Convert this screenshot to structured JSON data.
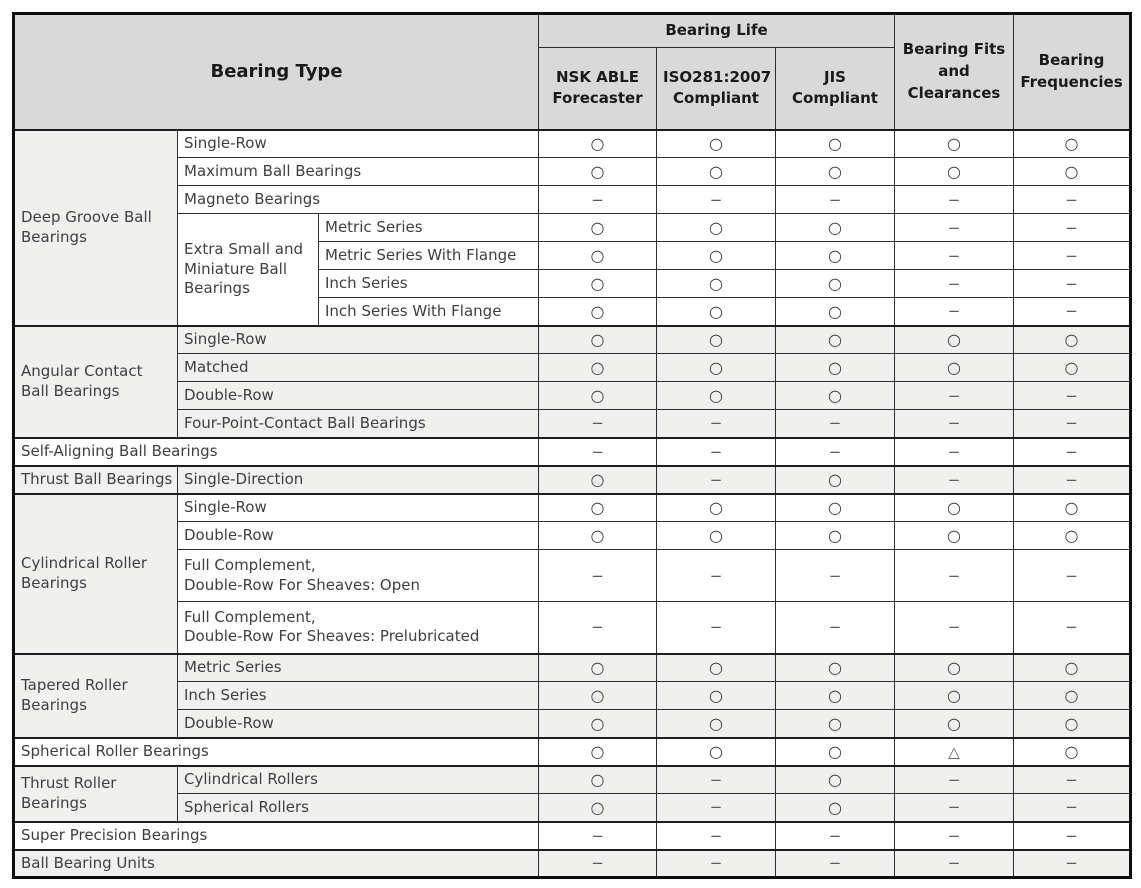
{
  "table": {
    "header": {
      "bearing_type": "Bearing Type",
      "bearing_life": "Bearing Life",
      "sub_columns": [
        "NSK ABLE\nForecaster",
        "ISO281:2007\nCompliant",
        "JIS\nCompliant"
      ],
      "fits": "Bearing Fits\nand\nClearances",
      "frequencies": "Bearing\nFrequencies"
    },
    "symbols": {
      "circle": "○",
      "dash": "−",
      "triangle": "△"
    },
    "rows": [
      {
        "shade": false,
        "cells": [
          {
            "text": "Deep Groove Ball Bearings",
            "rowspan": 7,
            "group": true
          },
          {
            "text": "Single-Row",
            "colspan": 2
          }
        ],
        "values": [
          "circle",
          "circle",
          "circle",
          "circle",
          "circle"
        ]
      },
      {
        "shade": false,
        "cells": [
          {
            "text": "Maximum Ball Bearings",
            "colspan": 2
          }
        ],
        "values": [
          "circle",
          "circle",
          "circle",
          "circle",
          "circle"
        ]
      },
      {
        "shade": false,
        "cells": [
          {
            "text": "Magneto Bearings",
            "colspan": 2
          }
        ],
        "values": [
          "dash",
          "dash",
          "dash",
          "dash",
          "dash"
        ]
      },
      {
        "shade": false,
        "cells": [
          {
            "text": "Extra Small and Miniature Ball Bearings",
            "rowspan": 4
          },
          {
            "text": "Metric Series"
          }
        ],
        "values": [
          "circle",
          "circle",
          "circle",
          "dash",
          "dash"
        ]
      },
      {
        "shade": false,
        "cells": [
          {
            "text": "Metric Series With Flange"
          }
        ],
        "values": [
          "circle",
          "circle",
          "circle",
          "dash",
          "dash"
        ]
      },
      {
        "shade": false,
        "cells": [
          {
            "text": "Inch Series"
          }
        ],
        "values": [
          "circle",
          "circle",
          "circle",
          "dash",
          "dash"
        ]
      },
      {
        "shade": false,
        "cells": [
          {
            "text": "Inch Series With Flange"
          }
        ],
        "values": [
          "circle",
          "circle",
          "circle",
          "dash",
          "dash"
        ]
      },
      {
        "shade": true,
        "cells": [
          {
            "text": "Angular Contact Ball Bearings",
            "rowspan": 4,
            "group": true
          },
          {
            "text": "Single-Row",
            "colspan": 2
          }
        ],
        "values": [
          "circle",
          "circle",
          "circle",
          "circle",
          "circle"
        ]
      },
      {
        "shade": true,
        "cells": [
          {
            "text": "Matched",
            "colspan": 2
          }
        ],
        "values": [
          "circle",
          "circle",
          "circle",
          "circle",
          "circle"
        ]
      },
      {
        "shade": true,
        "cells": [
          {
            "text": "Double-Row",
            "colspan": 2
          }
        ],
        "values": [
          "circle",
          "circle",
          "circle",
          "dash",
          "dash"
        ]
      },
      {
        "shade": true,
        "cells": [
          {
            "text": "Four-Point-Contact Ball Bearings",
            "colspan": 2
          }
        ],
        "values": [
          "dash",
          "dash",
          "dash",
          "dash",
          "dash"
        ]
      },
      {
        "shade": false,
        "cells": [
          {
            "text": "Self-Aligning Ball Bearings",
            "colspan": 3
          }
        ],
        "values": [
          "dash",
          "dash",
          "dash",
          "dash",
          "dash"
        ]
      },
      {
        "shade": true,
        "cells": [
          {
            "text": "Thrust Ball Bearings",
            "group": true
          },
          {
            "text": "Single-Direction",
            "colspan": 2
          }
        ],
        "values": [
          "circle",
          "dash",
          "circle",
          "dash",
          "dash"
        ]
      },
      {
        "shade": false,
        "cells": [
          {
            "text": "Cylindrical Roller Bearings",
            "rowspan": 4,
            "group": true
          },
          {
            "text": "Single-Row",
            "colspan": 2
          }
        ],
        "values": [
          "circle",
          "circle",
          "circle",
          "circle",
          "circle"
        ]
      },
      {
        "shade": false,
        "cells": [
          {
            "text": "Double-Row",
            "colspan": 2
          }
        ],
        "values": [
          "circle",
          "circle",
          "circle",
          "circle",
          "circle"
        ]
      },
      {
        "shade": false,
        "tall": true,
        "cells": [
          {
            "text": "Full Complement,\nDouble-Row For Sheaves: Open",
            "colspan": 2
          }
        ],
        "values": [
          "dash",
          "dash",
          "dash",
          "dash",
          "dash"
        ]
      },
      {
        "shade": false,
        "tall": true,
        "cells": [
          {
            "text": "Full Complement,\nDouble-Row For Sheaves: Prelubricated",
            "colspan": 2
          }
        ],
        "values": [
          "dash",
          "dash",
          "dash",
          "dash",
          "dash"
        ]
      },
      {
        "shade": true,
        "cells": [
          {
            "text": "Tapered Roller Bearings",
            "rowspan": 3,
            "group": true
          },
          {
            "text": "Metric Series",
            "colspan": 2
          }
        ],
        "values": [
          "circle",
          "circle",
          "circle",
          "circle",
          "circle"
        ]
      },
      {
        "shade": true,
        "cells": [
          {
            "text": "Inch Series",
            "colspan": 2
          }
        ],
        "values": [
          "circle",
          "circle",
          "circle",
          "circle",
          "circle"
        ]
      },
      {
        "shade": true,
        "cells": [
          {
            "text": "Double-Row",
            "colspan": 2
          }
        ],
        "values": [
          "circle",
          "circle",
          "circle",
          "circle",
          "circle"
        ]
      },
      {
        "shade": false,
        "cells": [
          {
            "text": "Spherical Roller Bearings",
            "colspan": 3
          }
        ],
        "values": [
          "circle",
          "circle",
          "circle",
          "triangle",
          "circle"
        ]
      },
      {
        "shade": true,
        "cells": [
          {
            "text": "Thrust Roller Bearings",
            "rowspan": 2,
            "group": true
          },
          {
            "text": "Cylindrical Rollers",
            "colspan": 2
          }
        ],
        "values": [
          "circle",
          "dash",
          "circle",
          "dash",
          "dash"
        ]
      },
      {
        "shade": true,
        "cells": [
          {
            "text": "Spherical Rollers",
            "colspan": 2
          }
        ],
        "values": [
          "circle",
          "dash",
          "circle",
          "dash",
          "dash"
        ]
      },
      {
        "shade": false,
        "cells": [
          {
            "text": "Super Precision Bearings",
            "colspan": 3
          }
        ],
        "values": [
          "dash",
          "dash",
          "dash",
          "dash",
          "dash"
        ]
      },
      {
        "shade": true,
        "cells": [
          {
            "text": "Ball Bearing Units",
            "colspan": 3
          }
        ],
        "values": [
          "dash",
          "dash",
          "dash",
          "dash",
          "dash"
        ]
      }
    ]
  }
}
